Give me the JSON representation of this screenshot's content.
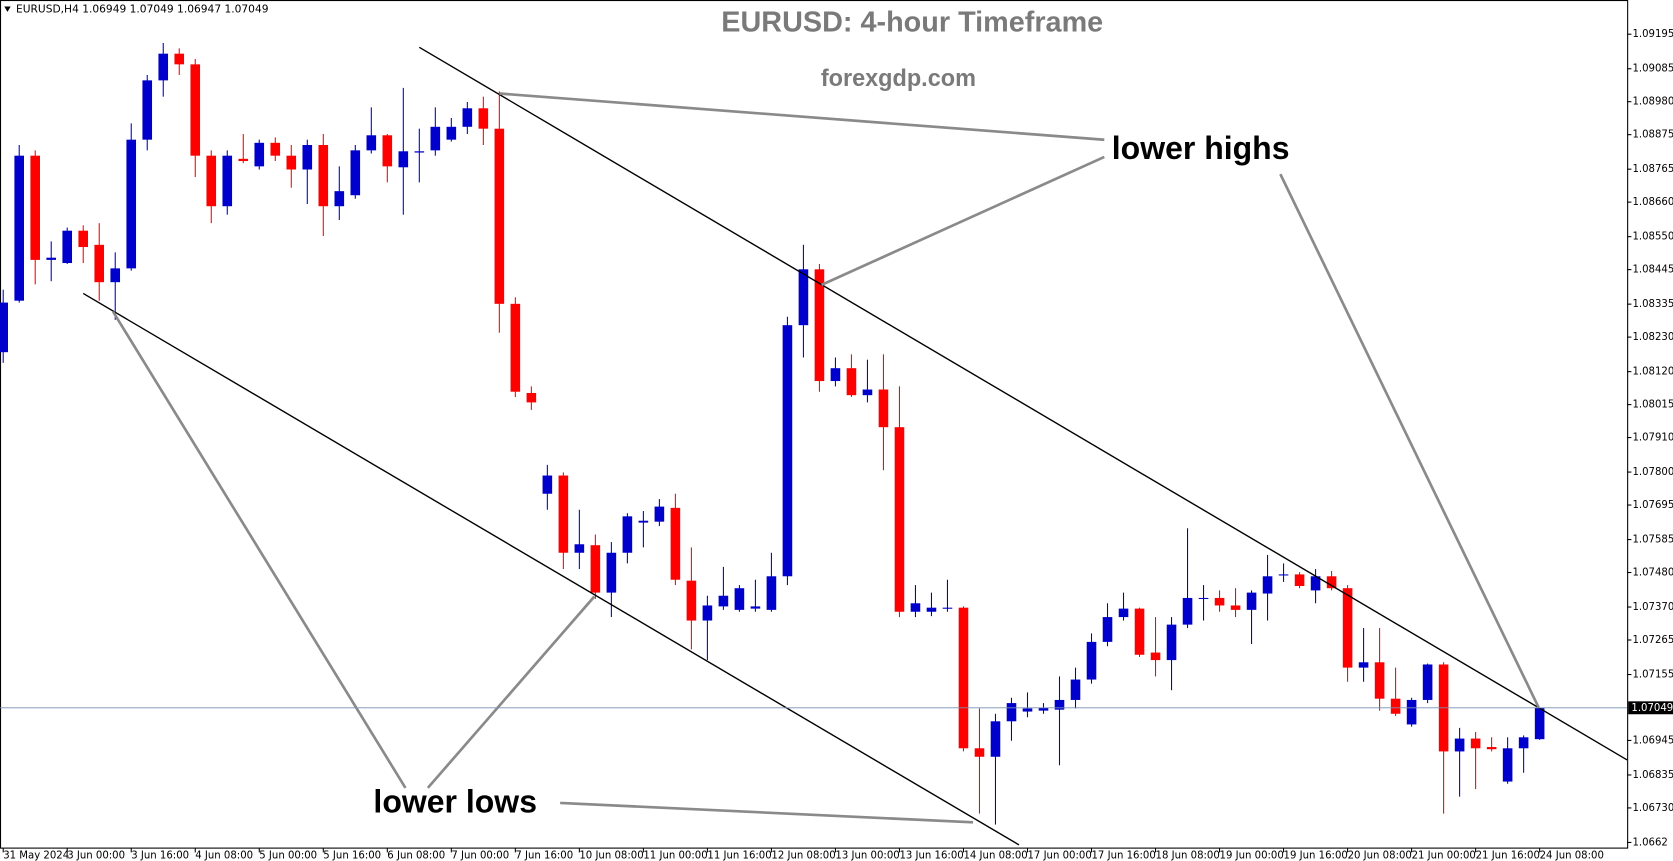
{
  "chart_data": {
    "type": "candlestick",
    "header": "EURUSD,H4  1.06949 1.07049 1.06947 1.07049",
    "title": "EURUSD: 4-hour Timeframe",
    "subtitle": "forexgdp.com",
    "annotations": [
      "lower highs",
      "lower lows"
    ],
    "up_color": "#0000cd",
    "down_color": "#ff0000",
    "ylim": [
      1.06602,
      1.09304
    ],
    "yticks": [
      1.09195,
      1.09085,
      {
        "value": 1.0898,
        "label": "1.08980"
      },
      1.08875,
      1.08765,
      {
        "value": 1.0866,
        "label": "1.08660"
      },
      {
        "value": 1.0855,
        "label": "1.08550"
      },
      1.08445,
      1.08335,
      {
        "value": 1.0823,
        "label": "1.08230"
      },
      {
        "value": 1.0812,
        "label": "1.08120"
      },
      1.08015,
      {
        "value": 1.0791,
        "label": "1.07910"
      },
      {
        "value": 1.078,
        "label": "1.07800"
      },
      1.07695,
      1.07585,
      {
        "value": 1.0748,
        "label": "1.07480"
      },
      {
        "value": 1.0737,
        "label": "1.07370"
      },
      1.07265,
      1.07155,
      1.06945,
      1.06835,
      {
        "value": 1.0673,
        "label": "1.06730"
      },
      1.0662
    ],
    "categories": [
      "31 May 2024",
      null,
      null,
      null,
      "3 Jun 00:00",
      null,
      null,
      null,
      "3 Jun 16:00",
      null,
      null,
      null,
      "4 Jun 08:00",
      null,
      null,
      null,
      "5 Jun 00:00",
      null,
      null,
      null,
      "5 Jun 16:00",
      null,
      null,
      null,
      "6 Jun 08:00",
      null,
      null,
      null,
      "7 Jun 00:00",
      null,
      null,
      null,
      "7 Jun 16:00",
      null,
      null,
      null,
      "10 Jun 08:00",
      null,
      null,
      null,
      "11 Jun 00:00",
      null,
      null,
      null,
      "11 Jun 16:00",
      null,
      null,
      null,
      "12 Jun 08:00",
      null,
      null,
      null,
      "13 Jun 00:00",
      null,
      null,
      null,
      "13 Jun 16:00",
      null,
      null,
      null,
      "14 Jun 08:00",
      null,
      null,
      null,
      "17 Jun 00:00",
      null,
      null,
      null,
      "17 Jun 16:00",
      null,
      null,
      null,
      "18 Jun 08:00",
      null,
      null,
      null,
      "19 Jun 00:00",
      null,
      null,
      null,
      "19 Jun 16:00",
      null,
      null,
      null,
      "20 Jun 08:00",
      null,
      null,
      null,
      "21 Jun 00:00",
      null,
      null,
      null,
      "21 Jun 16:00",
      null,
      null,
      null,
      "24 Jun 08:00"
    ],
    "open": [
      1.08182,
      1.08346,
      1.08808,
      1.08476,
      1.08466,
      1.08569,
      1.08524,
      1.08405,
      1.08449,
      1.08859,
      1.09048,
      1.09133,
      1.09099,
      1.08808,
      1.08647,
      1.08798,
      1.08774,
      1.08849,
      1.08808,
      1.08764,
      1.08842,
      1.08647,
      1.08682,
      1.08825,
      1.08873,
      1.08771,
      1.08818,
      1.08825,
      1.08859,
      1.089,
      1.08959,
      1.08894,
      1.08336,
      1.08052,
      1.07731,
      1.07789,
      1.07543,
      1.07567,
      1.07416,
      1.07543,
      1.07639,
      1.07642,
      1.07686,
      1.07454,
      1.07327,
      1.07372,
      1.07361,
      1.07365,
      1.07361,
      1.07468,
      1.08268,
      1.08446,
      1.0809,
      1.08131,
      1.08045,
      1.08063,
      1.07943,
      1.07355,
      1.07355,
      1.07365,
      1.07368,
      1.0692,
      1.06893,
      1.07006,
      1.07037,
      1.0704,
      1.07043,
      1.07074,
      1.07139,
      1.07259,
      1.07338,
      1.07365,
      1.07225,
      1.07201,
      1.07314,
      1.07396,
      1.07399,
      1.07375,
      1.07361,
      1.07413,
      1.07471,
      1.07474,
      1.07423,
      1.07468,
      1.0743,
      1.07177,
      1.07194,
      1.07078,
      1.06996,
      1.07074,
      1.07187,
      1.0691,
      1.06951,
      1.06924,
      1.06814,
      1.0692,
      1.06949
    ],
    "high": [
      1.08381,
      1.08842,
      1.08825,
      1.08535,
      1.08579,
      1.08586,
      1.08593,
      1.085,
      1.08911,
      1.09065,
      1.09167,
      1.0915,
      1.09116,
      1.08825,
      1.08825,
      1.08877,
      1.08859,
      1.08866,
      1.08842,
      1.08859,
      1.08877,
      1.08774,
      1.08842,
      1.08962,
      1.08877,
      1.09024,
      1.08894,
      1.08962,
      1.08928,
      1.08979,
      1.08996,
      1.09013,
      1.08357,
      1.08073,
      1.07823,
      1.07799,
      1.0768,
      1.07601,
      1.07577,
      1.07669,
      1.07676,
      1.07714,
      1.07731,
      1.0756,
      1.07406,
      1.07498,
      1.0744,
      1.07457,
      1.07543,
      1.08295,
      1.08524,
      1.08463,
      1.08165,
      1.08175,
      1.08158,
      1.08175,
      1.08073,
      1.0744,
      1.07416,
      1.07457,
      1.07372,
      1.07047,
      1.0703,
      1.07081,
      1.07098,
      1.07064,
      1.07149,
      1.07177,
      1.07286,
      1.07382,
      1.07416,
      1.07368,
      1.07338,
      1.07338,
      1.07621,
      1.0744,
      1.07423,
      1.0743,
      1.07423,
      1.07536,
      1.07509,
      1.07481,
      1.07491,
      1.07485,
      1.0744,
      1.07303,
      1.07303,
      1.07177,
      1.07081,
      1.0719,
      1.07194,
      1.06985,
      1.06972,
      1.06955,
      1.06955,
      1.06961,
      1.07049
    ],
    "low": [
      1.08148,
      1.0834,
      1.08398,
      1.08408,
      1.08463,
      1.08466,
      1.08346,
      1.08285,
      1.08442,
      1.08825,
      1.08996,
      1.09065,
      1.0874,
      1.08593,
      1.0862,
      1.08784,
      1.08764,
      1.08791,
      1.08706,
      1.08654,
      1.08552,
      1.08603,
      1.08671,
      1.08815,
      1.08723,
      1.0862,
      1.08723,
      1.08808,
      1.08853,
      1.08877,
      1.08842,
      1.08244,
      1.08039,
      1.07998,
      1.0768,
      1.07491,
      1.07491,
      1.07396,
      1.07338,
      1.07509,
      1.0756,
      1.07628,
      1.0744,
      1.07235,
      1.07201,
      1.07361,
      1.07355,
      1.07355,
      1.07355,
      1.0744,
      1.08165,
      1.08056,
      1.08073,
      1.08039,
      1.08022,
      1.07806,
      1.07338,
      1.07338,
      1.07341,
      1.07355,
      1.0691,
      1.06712,
      1.06677,
      1.06944,
      1.07019,
      1.0703,
      1.06866,
      1.07047,
      1.07126,
      1.07245,
      1.07327,
      1.07211,
      1.07149,
      1.07105,
      1.07303,
      1.07327,
      1.07355,
      1.07338,
      1.07252,
      1.07327,
      1.0745,
      1.0743,
      1.07382,
      1.07423,
      1.07132,
      1.07132,
      1.0704,
      1.07023,
      1.06989,
      1.07064,
      1.06712,
      1.06766,
      1.0679,
      1.0691,
      1.06807,
      1.06842,
      1.06947
    ],
    "close": [
      1.0834,
      1.08808,
      1.08476,
      1.08483,
      1.08569,
      1.08517,
      1.08405,
      1.08449,
      1.08859,
      1.09048,
      1.09133,
      1.09099,
      1.08808,
      1.08647,
      1.08808,
      1.08791,
      1.08849,
      1.08808,
      1.08764,
      1.08842,
      1.08647,
      1.08695,
      1.08825,
      1.08873,
      1.08774,
      1.08822,
      1.08822,
      1.089,
      1.089,
      1.08959,
      1.08894,
      1.08336,
      1.08056,
      1.08022,
      1.07789,
      1.07543,
      1.0757,
      1.07416,
      1.07543,
      1.07659,
      1.07645,
      1.0769,
      1.07457,
      1.07327,
      1.07375,
      1.07406,
      1.0743,
      1.07372,
      1.07468,
      1.08268,
      1.08446,
      1.0809,
      1.08131,
      1.08045,
      1.08063,
      1.07943,
      1.07355,
      1.07382,
      1.07368,
      1.07368,
      1.0692,
      1.06893,
      1.07006,
      1.07064,
      1.07047,
      1.0705,
      1.07074,
      1.07139,
      1.07259,
      1.07338,
      1.07365,
      1.07218,
      1.07201,
      1.07314,
      1.07399,
      1.07399,
      1.07375,
      1.07361,
      1.07416,
      1.07468,
      1.07474,
      1.07437,
      1.07468,
      1.0743,
      1.07177,
      1.07194,
      1.07078,
      1.0703,
      1.07074,
      1.07187,
      1.0691,
      1.06951,
      1.0692,
      1.06917,
      1.0692,
      1.06955,
      1.07049
    ]
  }
}
